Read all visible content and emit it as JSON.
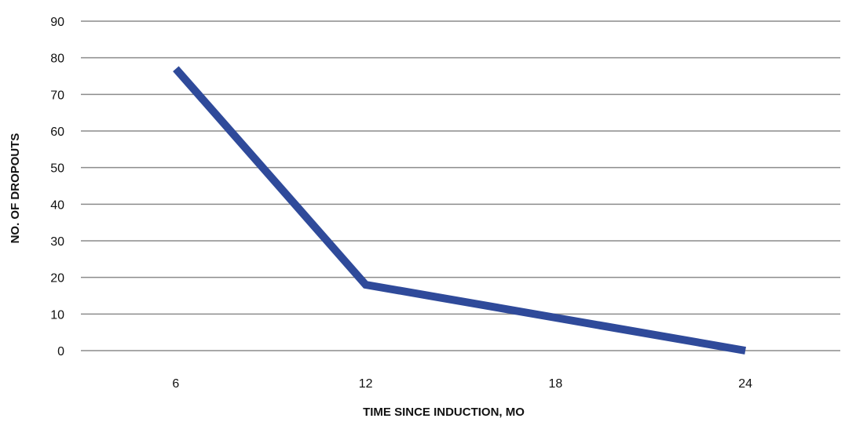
{
  "chart_data": {
    "type": "line",
    "title": "",
    "xlabel": "TIME SINCE INDUCTION, MO",
    "ylabel": "NO. OF DROPOUTS",
    "categories": [
      "6",
      "12",
      "18",
      "24"
    ],
    "y_ticks": [
      "0",
      "10",
      "20",
      "30",
      "40",
      "50",
      "60",
      "70",
      "80",
      "90"
    ],
    "ylim": [
      0,
      90
    ],
    "grid": "horizontal",
    "series": [
      {
        "values": [
          77,
          18,
          9,
          0
        ],
        "color": "#2f4a9a"
      }
    ],
    "colors": {
      "line": "#2f4a9a",
      "grid": "#8c8c8c"
    }
  }
}
